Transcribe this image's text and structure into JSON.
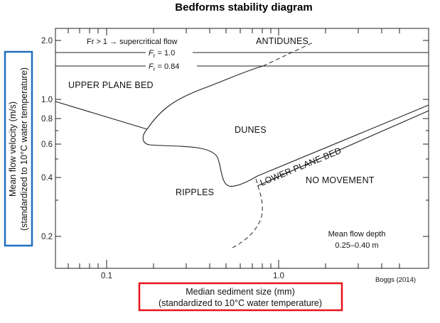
{
  "title": "Bedforms stability diagram",
  "x_axis": {
    "label_line1": "Median sediment size (mm)",
    "label_line2": "(standardized to 10°C water temperature)",
    "ticks": [
      "0.1",
      "1.0"
    ],
    "scale": "log",
    "box_color": "#e8141a"
  },
  "y_axis": {
    "label_line1": "Mean flow velocity (m/s)",
    "label_line2": "(standardized to 10°C water temperature)",
    "ticks": [
      "2.0",
      "1.0",
      "0.8",
      "0.6",
      "0.4",
      "0.2"
    ],
    "scale": "log",
    "box_color": "#1f6fbf"
  },
  "annotations": {
    "supercritical": "Fr > 1 → supercritical flow",
    "fr_1_sym": "F",
    "fr_1_sub": "r",
    "fr_1_val": " = 1.0",
    "fr_084_sym": "F",
    "fr_084_sub": "r",
    "fr_084_val": " = 0.84",
    "flow_depth_line1": "Mean flow depth",
    "flow_depth_line2": "0.25–0.40 m"
  },
  "regions": {
    "antidunes": "ANTIDUNES",
    "upper_plane_bed": "UPPER PLANE BED",
    "dunes": "DUNES",
    "ripples": "RIPPLES",
    "lower_plane_bed": "LOWER PLANE BED",
    "no_movement": "NO MOVEMENT"
  },
  "credit": "Boggs (2014)"
}
